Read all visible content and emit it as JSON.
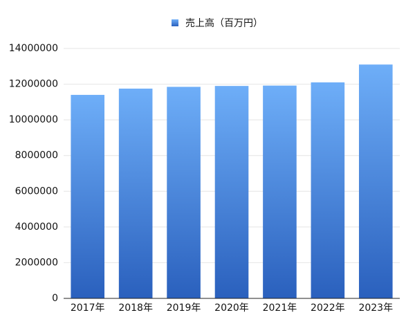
{
  "chart_data": {
    "type": "bar",
    "categories": [
      "2017年",
      "2018年",
      "2019年",
      "2020年",
      "2021年",
      "2022年",
      "2023年"
    ],
    "series": [
      {
        "name": "売上高（百万円）",
        "gradient": [
          "#6eaef8",
          "#2a60bd"
        ],
        "values": [
          11400000,
          11750000,
          11850000,
          11900000,
          11920000,
          12100000,
          13100000
        ]
      }
    ],
    "ylim": [
      0,
      14000000
    ],
    "yticks": [
      0,
      2000000,
      4000000,
      6000000,
      8000000,
      10000000,
      12000000,
      14000000
    ],
    "grid": true,
    "legend": "top"
  }
}
